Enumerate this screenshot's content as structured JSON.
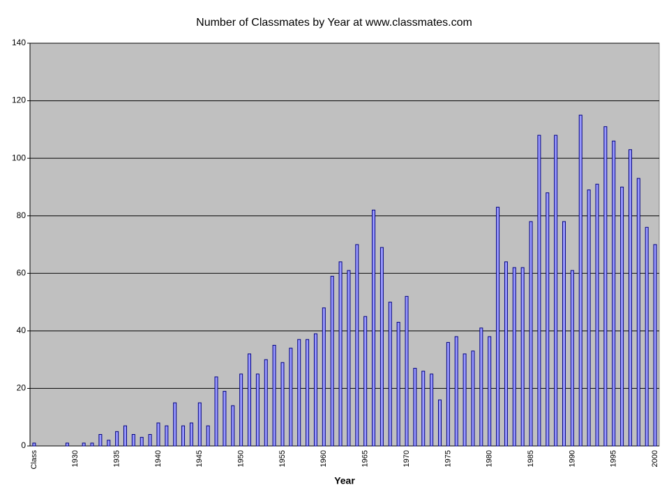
{
  "chart_data": {
    "type": "bar",
    "title": "Number of Classmates by Year at www.classmates.com",
    "x_label": "Year",
    "categories": [
      "Class",
      null,
      null,
      null,
      null,
      "1930",
      null,
      null,
      null,
      null,
      "1935",
      null,
      null,
      null,
      null,
      "1940",
      null,
      null,
      null,
      null,
      "1945",
      null,
      null,
      null,
      null,
      "1950",
      null,
      null,
      null,
      null,
      "1955",
      null,
      null,
      null,
      null,
      "1960",
      null,
      null,
      null,
      null,
      "1965",
      null,
      null,
      null,
      null,
      "1970",
      null,
      null,
      null,
      null,
      "1975",
      null,
      null,
      null,
      null,
      "1980",
      null,
      null,
      null,
      null,
      "1985",
      null,
      null,
      null,
      null,
      "1990",
      null,
      null,
      null,
      null,
      "1995",
      null,
      null,
      null,
      null,
      "2000"
    ],
    "values": [
      1,
      0,
      0,
      0,
      1,
      0,
      1,
      1,
      4,
      2,
      5,
      7,
      4,
      3,
      4,
      8,
      7,
      15,
      7,
      8,
      15,
      7,
      24,
      19,
      14,
      25,
      32,
      25,
      30,
      35,
      29,
      34,
      37,
      37,
      39,
      48,
      59,
      64,
      61,
      70,
      45,
      82,
      69,
      50,
      43,
      52,
      27,
      26,
      25,
      16,
      36,
      38,
      32,
      33,
      41,
      38,
      83,
      64,
      62,
      62,
      78,
      108,
      88,
      108,
      78,
      61,
      115,
      89,
      91,
      111,
      106,
      90,
      103,
      93,
      76,
      70
    ],
    "color": "#9999ff",
    "ylim": [
      0,
      140
    ],
    "yticks": [
      0,
      20,
      40,
      60,
      80,
      100,
      120,
      140
    ],
    "grid": true
  }
}
